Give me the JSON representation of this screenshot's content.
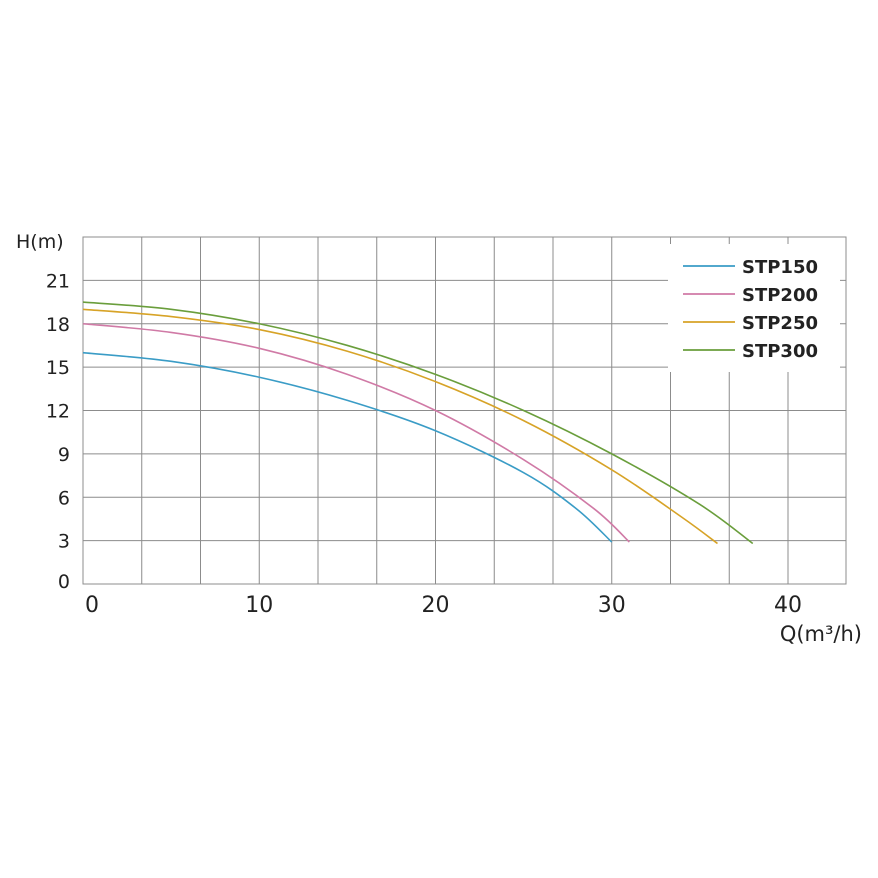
{
  "chart_data": {
    "type": "line",
    "title": "",
    "xlabel": "Q(m³/h)",
    "ylabel": "H(m)",
    "xlim": [
      0,
      43
    ],
    "ylim": [
      0,
      24
    ],
    "x_ticks": [
      "0",
      "10",
      "20",
      "30",
      "40"
    ],
    "y_ticks": [
      "0",
      "3",
      "6",
      "9",
      "12",
      "15",
      "18",
      "21"
    ],
    "grid": true,
    "legend_position": "top-right",
    "series": [
      {
        "name": "STP150",
        "color": "#3a9cc6",
        "x": [
          0,
          5,
          10,
          15,
          20,
          25,
          28,
          30
        ],
        "y": [
          16.0,
          15.4,
          14.3,
          12.7,
          10.6,
          7.7,
          5.2,
          2.9
        ]
      },
      {
        "name": "STP200",
        "color": "#d07aa6",
        "x": [
          0,
          5,
          10,
          15,
          20,
          25,
          29,
          31
        ],
        "y": [
          18.0,
          17.4,
          16.3,
          14.5,
          12.0,
          8.6,
          5.2,
          2.9
        ]
      },
      {
        "name": "STP250",
        "color": "#d7a327",
        "x": [
          0,
          5,
          10,
          15,
          20,
          25,
          30,
          34,
          36
        ],
        "y": [
          19.0,
          18.5,
          17.6,
          16.1,
          14.0,
          11.3,
          7.9,
          4.6,
          2.8
        ]
      },
      {
        "name": "STP300",
        "color": "#6a9e3c",
        "x": [
          0,
          5,
          10,
          15,
          20,
          25,
          30,
          35,
          38
        ],
        "y": [
          19.5,
          19.0,
          18.0,
          16.5,
          14.5,
          12.0,
          9.0,
          5.5,
          2.8
        ]
      }
    ]
  }
}
